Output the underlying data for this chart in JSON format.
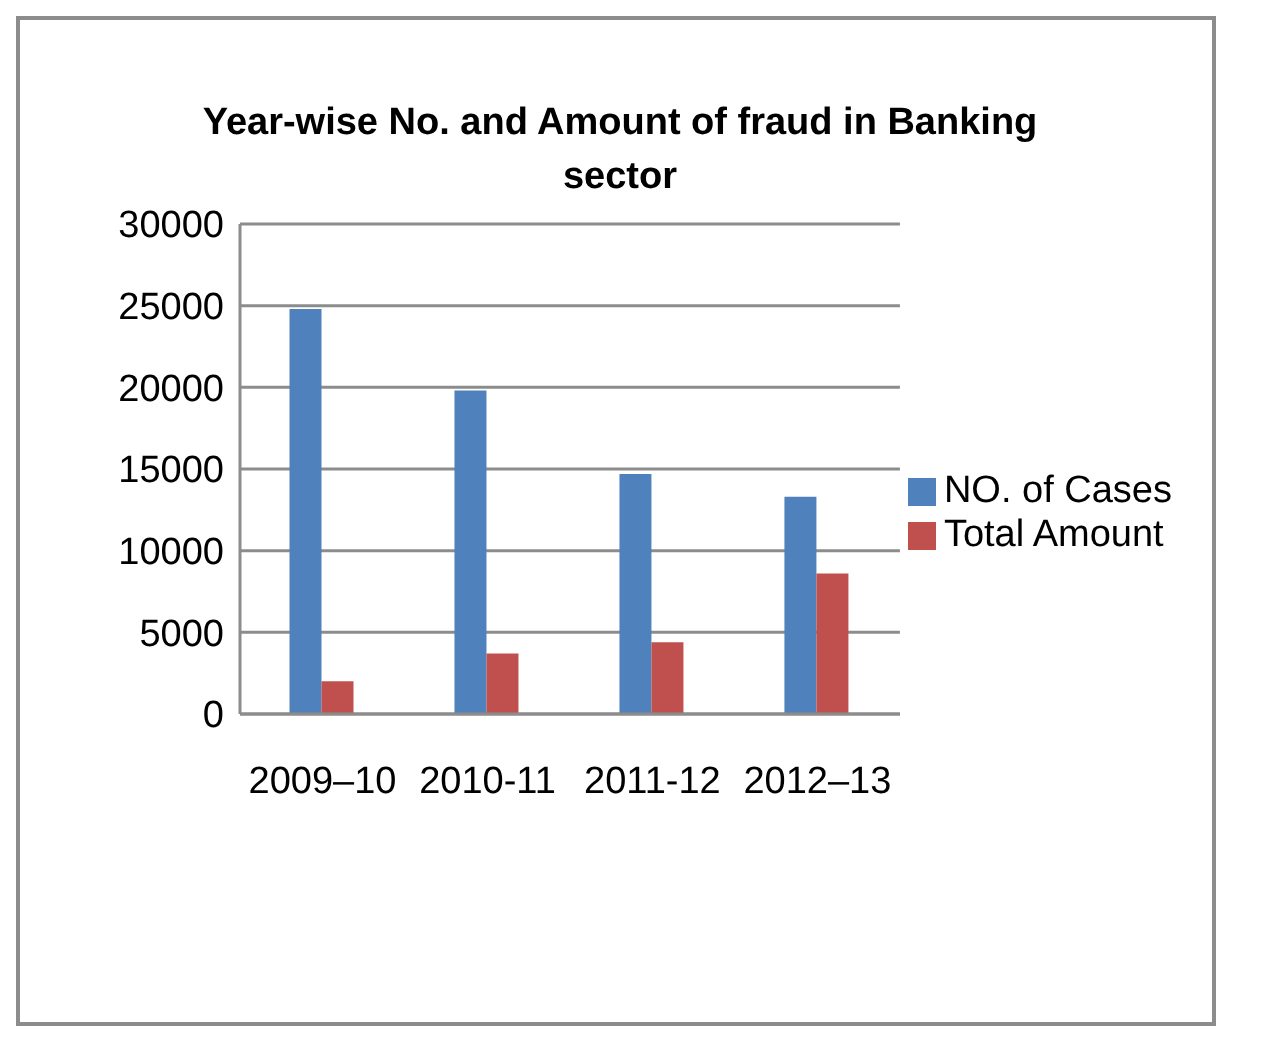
{
  "chart_data": {
    "type": "bar",
    "title": "Year-wise No. and Amount of fraud in Banking sector",
    "categories": [
      "2009–10",
      "2010-11",
      "2011-12",
      "2012–13"
    ],
    "series": [
      {
        "name": "NO. of Cases",
        "color": "#4f81bd",
        "values": [
          24800,
          19800,
          14700,
          13300
        ]
      },
      {
        "name": "Total Amount",
        "color": "#c0504d",
        "values": [
          2000,
          3700,
          4400,
          8600
        ]
      }
    ],
    "ylim": [
      0,
      30000
    ],
    "yticks": [
      0,
      5000,
      10000,
      15000,
      20000,
      25000,
      30000
    ],
    "grid": "y",
    "legend": "right"
  }
}
